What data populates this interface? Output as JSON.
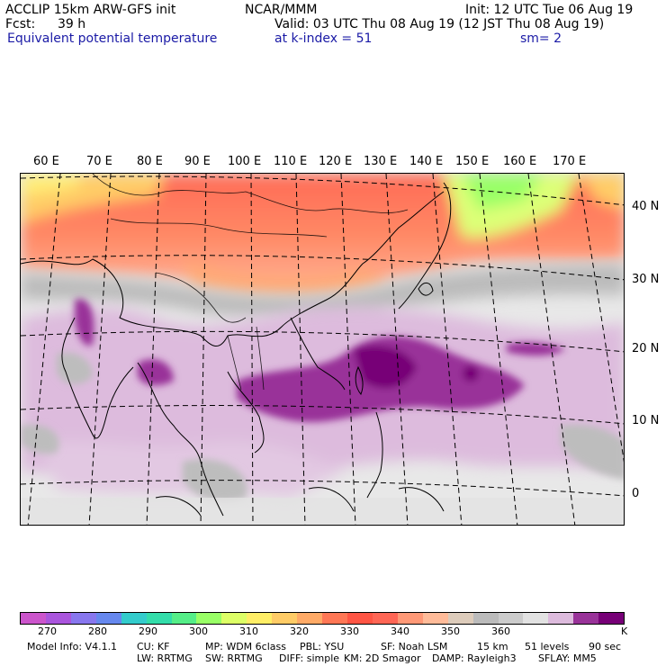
{
  "header": {
    "model": "ACCLIP 15km ARW-GFS init",
    "org": "NCAR/MMM",
    "init": "Init: 12 UTC Tue 06 Aug 19",
    "fcst_label": "Fcst:",
    "fcst_value": "39 h",
    "valid": "Valid: 03 UTC Thu 08 Aug 19 (12 JST Thu 08 Aug 19)",
    "field": "Equivalent potential temperature",
    "level": "at k-index =  51",
    "smooth": "sm= 2"
  },
  "map": {
    "lon_labels": [
      "60 E",
      "70 E",
      "80 E",
      "90 E",
      "100 E",
      "110 E",
      "120 E",
      "130 E",
      "140 E",
      "150 E",
      "160 E",
      "170 E"
    ],
    "lat_labels": [
      "40 N",
      "30 N",
      "20 N",
      "10 N",
      "0"
    ]
  },
  "colorbar": {
    "colors": [
      "#cc55cc",
      "#aa55dd",
      "#8877ee",
      "#6688ee",
      "#33cccc",
      "#33ddaa",
      "#55ee88",
      "#99ff66",
      "#ddff66",
      "#ffee66",
      "#ffcc66",
      "#ffaa66",
      "#ff7755",
      "#ff5544",
      "#ff6655",
      "#ff9977",
      "#ffbb99",
      "#ddccbb",
      "#bbbbbb",
      "#cccccc",
      "#e2e2e2",
      "#ddbbdd",
      "#993399",
      "#770077"
    ],
    "ticks": [
      "270",
      "280",
      "290",
      "300",
      "310",
      "320",
      "330",
      "340",
      "350",
      "360"
    ],
    "unit": "K"
  },
  "footer": {
    "line1": [
      "Model Info: V4.1.1",
      "CU: KF",
      "MP: WDM 6class",
      "PBL: YSU",
      "SF: Noah LSM",
      "15 km",
      "51 levels",
      "90 sec"
    ],
    "line2": [
      "LW: RRTMG",
      "SW: RRTMG",
      "DIFF: simple",
      "KM: 2D Smagor",
      "DAMP: Rayleigh3",
      "SFLAY: MM5"
    ]
  }
}
